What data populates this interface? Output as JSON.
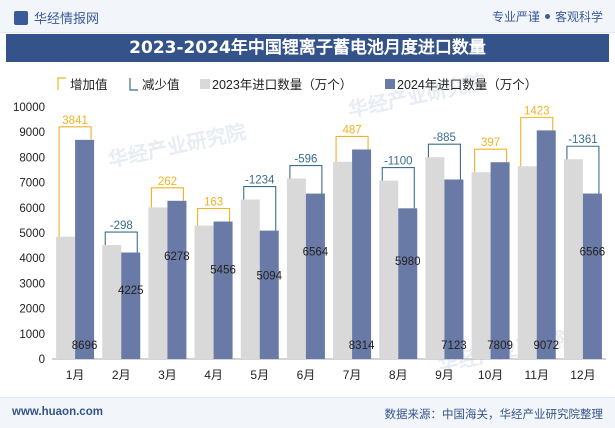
{
  "header": {
    "brand": "华经情报网",
    "tag_left": "专业严谨",
    "tag_right": "客观科学"
  },
  "footer": {
    "url": "www.huaon.com",
    "source": "数据来源：中国海关，华经产业研究院整理"
  },
  "watermark": "华经产业研究院",
  "colors": {
    "s2023": "#d9d9d9",
    "s2024": "#6a7aa6",
    "increase": "#f0b323",
    "decrease": "#3a6e8f",
    "title_bg": "#34538a"
  },
  "chart_data": {
    "type": "bar",
    "title": "2023-2024年中国锂离子蓄电池月度进口数量",
    "categories": [
      "1月",
      "2月",
      "3月",
      "4月",
      "5月",
      "6月",
      "7月",
      "8月",
      "9月",
      "10月",
      "11月",
      "12月"
    ],
    "series": [
      {
        "name": "2023年进口数量（万个）",
        "values": [
          4855,
          4523,
          6016,
          5293,
          6328,
          7160,
          7827,
          7080,
          8008,
          7412,
          7649,
          7927
        ]
      },
      {
        "name": "2024年进口数量（万个）",
        "values": [
          8696,
          4225,
          6278,
          5456,
          5094,
          6564,
          8314,
          5980,
          7123,
          7809,
          9072,
          6566
        ]
      }
    ],
    "differences": [
      3841,
      -298,
      262,
      163,
      -1234,
      -596,
      487,
      -1100,
      -885,
      397,
      1423,
      -1361
    ],
    "legend": [
      "增加值",
      "减少值",
      "2023年进口数量（万个）",
      "2024年进口数量（万个）"
    ],
    "ylim": [
      0,
      10000
    ],
    "yticks": [
      0,
      1000,
      2000,
      3000,
      4000,
      5000,
      6000,
      7000,
      8000,
      9000,
      10000
    ],
    "legend_position": "top",
    "grid": false
  }
}
